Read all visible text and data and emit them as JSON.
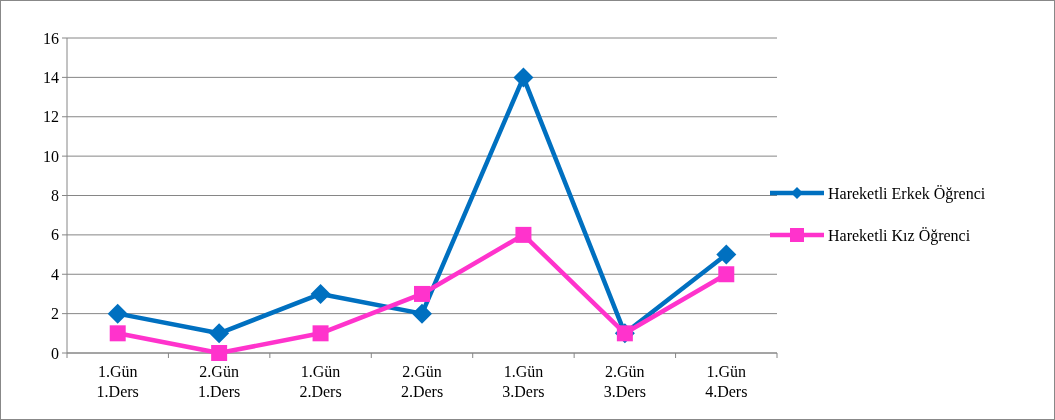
{
  "chart_data": {
    "type": "line",
    "categories": [
      "1.Gün\n1.Ders",
      "2.Gün\n1.Ders",
      "1.Gün\n2.Ders",
      "2.Gün\n2.Ders",
      "1.Gün\n3.Ders",
      "2.Gün\n3.Ders",
      "1.Gün\n4.Ders"
    ],
    "series": [
      {
        "name": "Hareketli Erkek Öğrenci",
        "color": "#0070c0",
        "marker": "diamond",
        "values": [
          2,
          1,
          3,
          2,
          14,
          1,
          5
        ]
      },
      {
        "name": "Hareketli Kız Öğrenci",
        "color": "#ff33cc",
        "marker": "square",
        "values": [
          1,
          0,
          1,
          3,
          6,
          1,
          4
        ]
      }
    ],
    "ylim": [
      0,
      16
    ],
    "yticks": [
      0,
      2,
      4,
      6,
      8,
      10,
      12,
      14,
      16
    ],
    "grid": "y",
    "legend": "right",
    "line_style": "solid"
  }
}
